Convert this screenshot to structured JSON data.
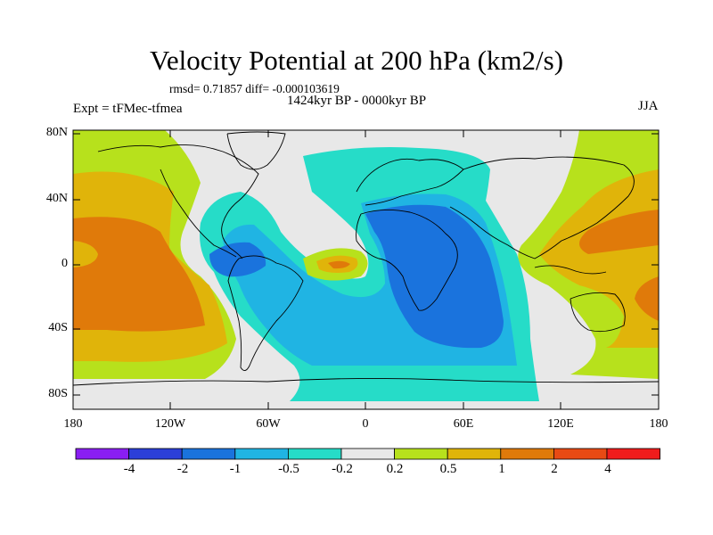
{
  "title": "Velocity Potential at 200 hPa (km2/s)",
  "stats": "rmsd= 0.71857 diff= -0.000103619",
  "period": "1424kyr BP - 0000kyr BP",
  "experiment": "Expt = tFMec-tfmea",
  "season": "JJA",
  "latitude_labels": [
    "80N",
    "40N",
    "0",
    "40S",
    "80S"
  ],
  "longitude_labels": [
    "180",
    "120W",
    "60W",
    "0",
    "60E",
    "120E",
    "180"
  ],
  "colorbar": {
    "labels": [
      "-4",
      "-2",
      "-1",
      "-0.5",
      "-0.2",
      "0.2",
      "0.5",
      "1",
      "2",
      "4"
    ],
    "colors": [
      "#8a1ef2",
      "#2c3fd8",
      "#1a73dd",
      "#20b4e3",
      "#26dcc8",
      "#e8e8e8",
      "#b7e11c",
      "#e0b40a",
      "#e07a0a",
      "#e84a14",
      "#f01c1c"
    ]
  },
  "colors": {
    "land_outline": "#000000",
    "neutral": "#e8e8e8"
  }
}
